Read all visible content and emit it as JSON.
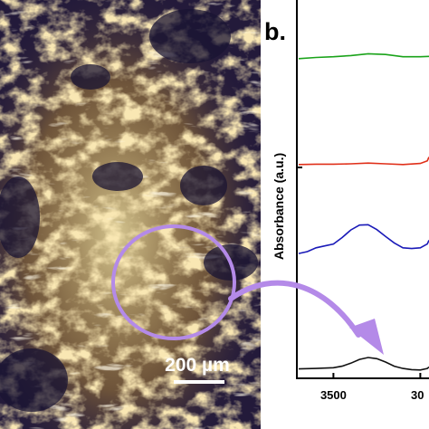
{
  "figure": {
    "panel_b_label": "b.",
    "scale_bar_text": "200 µm",
    "colors": {
      "annotation": "#b48ae8",
      "green_trace": "#1aa31a",
      "red_trace": "#e0301a",
      "blue_trace": "#1a1ab8",
      "black_trace": "#111111"
    }
  },
  "chart_data": {
    "type": "line",
    "xlabel": "",
    "ylabel": "Absorbance (a.u.)",
    "x_ticks": [
      "3500",
      "30"
    ],
    "xlim": [
      3700,
      2950
    ],
    "x_reversed": true,
    "series": [
      {
        "color": "#1aa31a",
        "x": [
          3700,
          3600,
          3500,
          3400,
          3300,
          3200,
          3100,
          3000,
          2950
        ],
        "y": [
          0.845,
          0.848,
          0.85,
          0.853,
          0.858,
          0.856,
          0.85,
          0.85,
          0.851
        ]
      },
      {
        "color": "#e0301a",
        "x": [
          3700,
          3600,
          3500,
          3400,
          3300,
          3200,
          3100,
          3000,
          2960,
          2950
        ],
        "y": [
          0.565,
          0.566,
          0.566,
          0.567,
          0.569,
          0.567,
          0.565,
          0.568,
          0.575,
          0.585
        ]
      },
      {
        "color": "#1a1ab8",
        "x": [
          3700,
          3650,
          3600,
          3550,
          3500,
          3450,
          3400,
          3350,
          3300,
          3250,
          3200,
          3150,
          3100,
          3050,
          3000,
          2960,
          2950
        ],
        "y": [
          0.33,
          0.335,
          0.345,
          0.35,
          0.355,
          0.372,
          0.392,
          0.405,
          0.406,
          0.393,
          0.375,
          0.358,
          0.345,
          0.343,
          0.345,
          0.355,
          0.365
        ]
      },
      {
        "color": "#111111",
        "x": [
          3700,
          3600,
          3500,
          3450,
          3400,
          3350,
          3300,
          3250,
          3200,
          3150,
          3100,
          3050,
          3000,
          2960,
          2950
        ],
        "y": [
          0.025,
          0.026,
          0.028,
          0.032,
          0.04,
          0.05,
          0.055,
          0.052,
          0.043,
          0.032,
          0.026,
          0.023,
          0.022,
          0.026,
          0.03
        ]
      }
    ]
  }
}
